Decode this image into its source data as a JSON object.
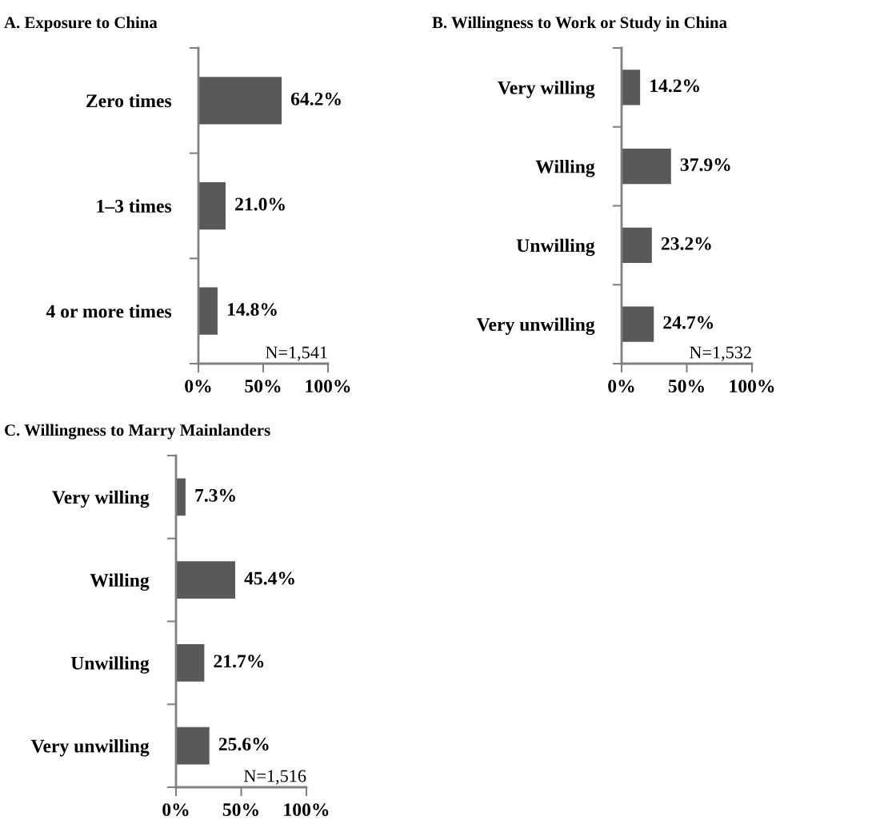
{
  "chart_data": [
    {
      "type": "bar",
      "orientation": "horizontal",
      "title": "A. Exposure to China",
      "categories": [
        "Zero times",
        "1–3 times",
        "4 or more times"
      ],
      "values": [
        64.2,
        21.0,
        14.8
      ],
      "value_labels": [
        "64.2%",
        "21.0%",
        "14.8%"
      ],
      "color": "#595959",
      "xlim": [
        0,
        100
      ],
      "xticks": [
        {
          "value": 0,
          "label": "0%"
        },
        {
          "value": 50,
          "label": "50%"
        },
        {
          "value": 100,
          "label": "100%"
        }
      ],
      "grid": false,
      "legend": false,
      "annotations": [
        "N=1,541"
      ]
    },
    {
      "type": "bar",
      "orientation": "horizontal",
      "title": "B. Willingness to Work or Study in China",
      "categories": [
        "Very willing",
        "Willing",
        "Unwilling",
        "Very unwilling"
      ],
      "values": [
        14.2,
        37.9,
        23.2,
        24.7
      ],
      "value_labels": [
        "14.2%",
        "37.9%",
        "23.2%",
        "24.7%"
      ],
      "color": "#595959",
      "xlim": [
        0,
        100
      ],
      "xticks": [
        {
          "value": 0,
          "label": "0%"
        },
        {
          "value": 50,
          "label": "50%"
        },
        {
          "value": 100,
          "label": "100%"
        }
      ],
      "grid": false,
      "legend": false,
      "annotations": [
        "N=1,532"
      ]
    },
    {
      "type": "bar",
      "orientation": "horizontal",
      "title": "C. Willingness to Marry Mainlanders",
      "categories": [
        "Very willing",
        "Willing",
        "Unwilling",
        "Very unwilling"
      ],
      "values": [
        7.3,
        45.4,
        21.7,
        25.6
      ],
      "value_labels": [
        "7.3%",
        "45.4%",
        "21.7%",
        "25.6%"
      ],
      "color": "#595959",
      "xlim": [
        0,
        100
      ],
      "xticks": [
        {
          "value": 0,
          "label": "0%"
        },
        {
          "value": 50,
          "label": "50%"
        },
        {
          "value": 100,
          "label": "100%"
        }
      ],
      "grid": false,
      "legend": false,
      "annotations": [
        "N=1,516"
      ]
    }
  ]
}
